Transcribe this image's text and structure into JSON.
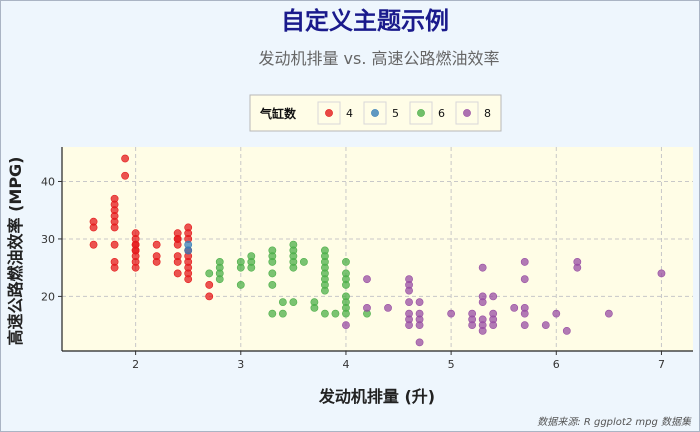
{
  "chart_data": {
    "type": "scatter",
    "title": "自定义主题示例",
    "subtitle": "发动机排量 vs. 高速公路燃油效率",
    "xlabel": "发动机排量 (升)",
    "ylabel": "高速公路燃油效率 (MPG)",
    "caption": "数据来源: R ggplot2 mpg 数据集",
    "xlim": [
      1.3,
      7.3
    ],
    "ylim": [
      10.5,
      46
    ],
    "xticks": [
      2,
      3,
      4,
      5,
      6,
      7
    ],
    "yticks": [
      20,
      30,
      40
    ],
    "grid": true,
    "legend": {
      "title": "气缸数",
      "placement": "top",
      "entries": [
        {
          "label": "4",
          "color": "#e41a1c"
        },
        {
          "label": "5",
          "color": "#377eb8"
        },
        {
          "label": "6",
          "color": "#4daf4a"
        },
        {
          "label": "8",
          "color": "#984ea3"
        }
      ]
    },
    "series": [
      {
        "name": "4",
        "color": "#e41a1c",
        "points": [
          [
            1.6,
            33
          ],
          [
            1.6,
            32
          ],
          [
            1.6,
            29
          ],
          [
            1.8,
            29
          ],
          [
            1.8,
            26
          ],
          [
            1.8,
            25
          ],
          [
            1.8,
            33
          ],
          [
            1.8,
            35
          ],
          [
            1.8,
            36
          ],
          [
            1.8,
            37
          ],
          [
            1.8,
            34
          ],
          [
            1.8,
            32
          ],
          [
            1.9,
            44
          ],
          [
            1.9,
            41
          ],
          [
            2.0,
            31
          ],
          [
            2.0,
            30
          ],
          [
            2.0,
            29
          ],
          [
            2.0,
            28
          ],
          [
            2.0,
            27
          ],
          [
            2.0,
            26
          ],
          [
            2.0,
            25
          ],
          [
            2.0,
            28
          ],
          [
            2.0,
            29
          ],
          [
            2.2,
            29
          ],
          [
            2.2,
            27
          ],
          [
            2.2,
            26
          ],
          [
            2.4,
            31
          ],
          [
            2.4,
            30
          ],
          [
            2.4,
            29
          ],
          [
            2.4,
            27
          ],
          [
            2.4,
            26
          ],
          [
            2.4,
            24
          ],
          [
            2.4,
            30
          ],
          [
            2.5,
            32
          ],
          [
            2.5,
            31
          ],
          [
            2.5,
            30
          ],
          [
            2.5,
            28
          ],
          [
            2.5,
            27
          ],
          [
            2.5,
            26
          ],
          [
            2.5,
            25
          ],
          [
            2.5,
            24
          ],
          [
            2.5,
            23
          ],
          [
            2.7,
            22
          ],
          [
            2.7,
            20
          ]
        ]
      },
      {
        "name": "5",
        "color": "#377eb8",
        "points": [
          [
            2.5,
            29
          ],
          [
            2.5,
            28
          ]
        ]
      },
      {
        "name": "6",
        "color": "#4daf4a",
        "points": [
          [
            2.7,
            24
          ],
          [
            2.8,
            26
          ],
          [
            2.8,
            25
          ],
          [
            2.8,
            24
          ],
          [
            2.8,
            23
          ],
          [
            3.0,
            26
          ],
          [
            3.0,
            25
          ],
          [
            3.0,
            22
          ],
          [
            3.1,
            27
          ],
          [
            3.1,
            26
          ],
          [
            3.1,
            25
          ],
          [
            3.3,
            28
          ],
          [
            3.3,
            27
          ],
          [
            3.3,
            26
          ],
          [
            3.3,
            24
          ],
          [
            3.3,
            22
          ],
          [
            3.3,
            17
          ],
          [
            3.4,
            19
          ],
          [
            3.4,
            17
          ],
          [
            3.5,
            29
          ],
          [
            3.5,
            28
          ],
          [
            3.5,
            27
          ],
          [
            3.5,
            26
          ],
          [
            3.5,
            25
          ],
          [
            3.5,
            19
          ],
          [
            3.6,
            26
          ],
          [
            3.7,
            19
          ],
          [
            3.7,
            18
          ],
          [
            3.8,
            28
          ],
          [
            3.8,
            27
          ],
          [
            3.8,
            26
          ],
          [
            3.8,
            25
          ],
          [
            3.8,
            24
          ],
          [
            3.8,
            23
          ],
          [
            3.8,
            22
          ],
          [
            3.8,
            21
          ],
          [
            3.8,
            17
          ],
          [
            3.9,
            17
          ],
          [
            4.0,
            26
          ],
          [
            4.0,
            24
          ],
          [
            4.0,
            23
          ],
          [
            4.0,
            22
          ],
          [
            4.0,
            20
          ],
          [
            4.0,
            19
          ],
          [
            4.0,
            18
          ],
          [
            4.0,
            17
          ],
          [
            4.2,
            17
          ]
        ]
      },
      {
        "name": "8",
        "color": "#984ea3",
        "points": [
          [
            4.0,
            15
          ],
          [
            4.2,
            23
          ],
          [
            4.2,
            18
          ],
          [
            4.4,
            18
          ],
          [
            4.6,
            23
          ],
          [
            4.6,
            22
          ],
          [
            4.6,
            21
          ],
          [
            4.6,
            19
          ],
          [
            4.6,
            17
          ],
          [
            4.6,
            16
          ],
          [
            4.6,
            15
          ],
          [
            4.7,
            19
          ],
          [
            4.7,
            17
          ],
          [
            4.7,
            16
          ],
          [
            4.7,
            15
          ],
          [
            4.7,
            12
          ],
          [
            5.0,
            17
          ],
          [
            5.2,
            17
          ],
          [
            5.2,
            16
          ],
          [
            5.2,
            15
          ],
          [
            5.3,
            25
          ],
          [
            5.3,
            20
          ],
          [
            5.3,
            19
          ],
          [
            5.3,
            16
          ],
          [
            5.3,
            15
          ],
          [
            5.3,
            14
          ],
          [
            5.4,
            20
          ],
          [
            5.4,
            17
          ],
          [
            5.4,
            16
          ],
          [
            5.4,
            15
          ],
          [
            5.6,
            18
          ],
          [
            5.7,
            26
          ],
          [
            5.7,
            23
          ],
          [
            5.7,
            18
          ],
          [
            5.7,
            17
          ],
          [
            5.7,
            15
          ],
          [
            5.9,
            15
          ],
          [
            6.0,
            17
          ],
          [
            6.1,
            14
          ],
          [
            6.2,
            26
          ],
          [
            6.2,
            25
          ],
          [
            6.5,
            17
          ],
          [
            7.0,
            24
          ]
        ]
      }
    ]
  }
}
